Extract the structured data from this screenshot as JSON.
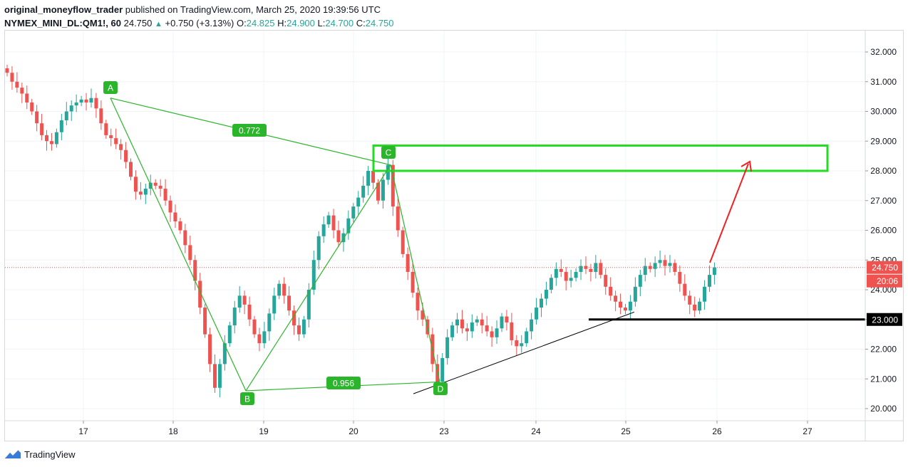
{
  "header": {
    "author": "original_moneyflow_trader",
    "published_text": "published on TradingView.com, March 25, 2020 19:39:56 UTC",
    "symbol": "NYMEX_MINI_DL:QM1!, 60",
    "last": "24.750",
    "change": "+0.750 (+3.13%)",
    "o_label": "O:",
    "o_value": "24.825",
    "h_label": "H:",
    "h_value": "24.900",
    "l_label": "L:",
    "l_value": "24.700",
    "c_label": "C:",
    "c_value": "24.750"
  },
  "footer": {
    "brand": "TradingView"
  },
  "colors": {
    "up": "#26a69a",
    "down": "#ef5350",
    "pattern": "#2bb52b",
    "zone": "#22dd22",
    "arrow": "#ee2222",
    "support": "#000000"
  },
  "chart_data": {
    "type": "candlestick",
    "y_ticks": [
      "32.000",
      "31.000",
      "30.000",
      "29.000",
      "28.000",
      "27.000",
      "26.000",
      "25.000",
      "24.000",
      "23.000",
      "22.000",
      "21.000",
      "20.000"
    ],
    "x_ticks": [
      "17",
      "18",
      "19",
      "20",
      "23",
      "24",
      "25",
      "26",
      "27"
    ],
    "ylim": [
      19.45,
      32.7
    ],
    "last_price_label": "24.750",
    "countdown_label": "20:06",
    "support_label": "23.000",
    "support_level": 23.0,
    "pattern_points": [
      {
        "label": "A",
        "x": "17",
        "price": 30.45
      },
      {
        "label": "B",
        "x": "18",
        "price": 20.6
      },
      {
        "label": "C",
        "x": "20",
        "price": 28.2
      },
      {
        "label": "D",
        "x": "23",
        "price": 20.9
      }
    ],
    "ratios": [
      "0.772",
      "0.956"
    ],
    "zone": {
      "low": 28.0,
      "high": 28.85
    },
    "close_series": [
      31.3,
      31.0,
      30.8,
      30.6,
      30.3,
      30.0,
      29.6,
      29.2,
      29.0,
      28.9,
      29.3,
      29.7,
      30.0,
      30.2,
      30.3,
      30.4,
      30.3,
      30.45,
      30.1,
      29.6,
      29.2,
      29.1,
      28.9,
      28.7,
      28.3,
      27.8,
      27.3,
      27.2,
      27.4,
      27.6,
      27.5,
      27.4,
      27.0,
      26.6,
      26.3,
      26.0,
      25.5,
      25.0,
      24.3,
      23.4,
      22.5,
      21.5,
      20.7,
      21.5,
      22.2,
      22.8,
      23.4,
      23.8,
      23.5,
      23.0,
      22.5,
      22.2,
      22.6,
      23.2,
      23.8,
      24.2,
      23.8,
      23.3,
      22.8,
      22.5,
      23.0,
      24.0,
      25.0,
      25.8,
      26.2,
      26.5,
      26.0,
      25.6,
      25.9,
      26.4,
      26.8,
      27.1,
      27.5,
      28.0,
      27.6,
      27.0,
      27.7,
      28.2,
      26.8,
      26.0,
      25.2,
      24.6,
      23.9,
      23.3,
      23.0,
      22.5,
      21.5,
      20.9,
      21.7,
      22.4,
      22.8,
      23.0,
      22.7,
      22.6,
      22.9,
      23.0,
      22.8,
      22.6,
      22.4,
      22.7,
      23.1,
      22.9,
      22.3,
      22.1,
      22.2,
      22.6,
      23.0,
      23.4,
      23.7,
      24.0,
      24.4,
      24.7,
      24.6,
      24.3,
      24.4,
      24.6,
      24.8,
      24.7,
      24.6,
      24.9,
      24.5,
      24.1,
      23.8,
      23.6,
      23.4,
      23.3,
      23.6,
      24.1,
      24.5,
      24.8,
      24.7,
      24.9,
      25.0,
      24.8,
      24.9,
      24.6,
      24.2,
      23.8,
      23.5,
      23.3,
      23.6,
      24.1,
      24.5,
      24.75
    ]
  }
}
